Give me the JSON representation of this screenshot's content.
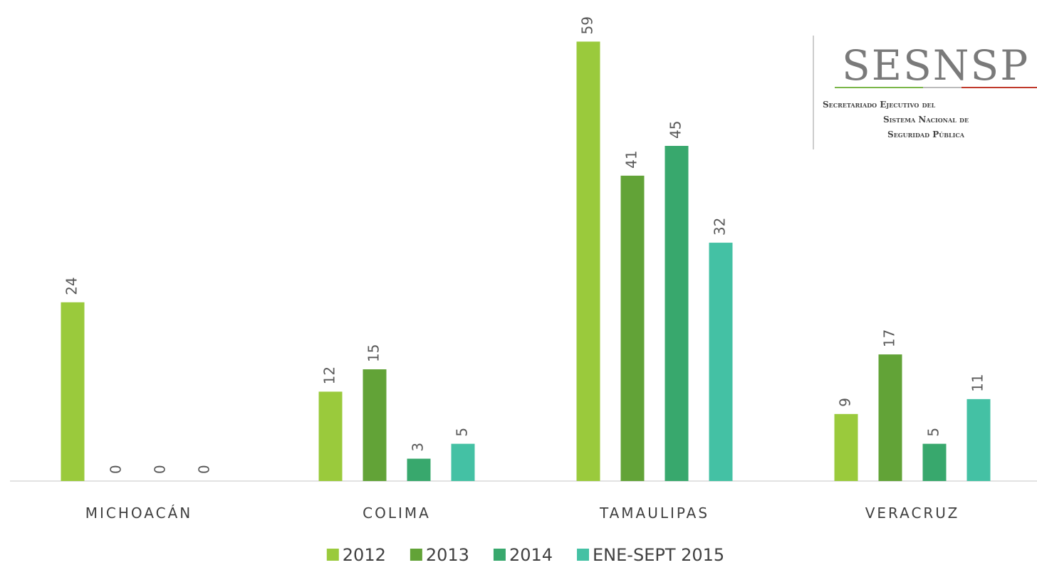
{
  "chart_data": {
    "type": "bar",
    "categories": [
      "MICHOACÁN",
      "COLIMA",
      "TAMAULIPAS",
      "VERACRUZ"
    ],
    "series": [
      {
        "name": "2012",
        "color": "#9aca3c",
        "values": [
          24,
          12,
          59,
          9
        ]
      },
      {
        "name": "2013",
        "color": "#62a337",
        "values": [
          0,
          15,
          41,
          17
        ]
      },
      {
        "name": "2014",
        "color": "#38a86d",
        "values": [
          0,
          3,
          45,
          5
        ]
      },
      {
        "name": "ENE-SEPT 2015",
        "color": "#44c1a4",
        "values": [
          0,
          5,
          32,
          11
        ]
      }
    ],
    "ylim": [
      0,
      60
    ],
    "legend": "bottom"
  },
  "logo": {
    "title": "SESNSP",
    "lines": [
      "Secretariado Ejecutivo del",
      "Sistema Nacional de",
      "Seguridad Pública"
    ]
  }
}
